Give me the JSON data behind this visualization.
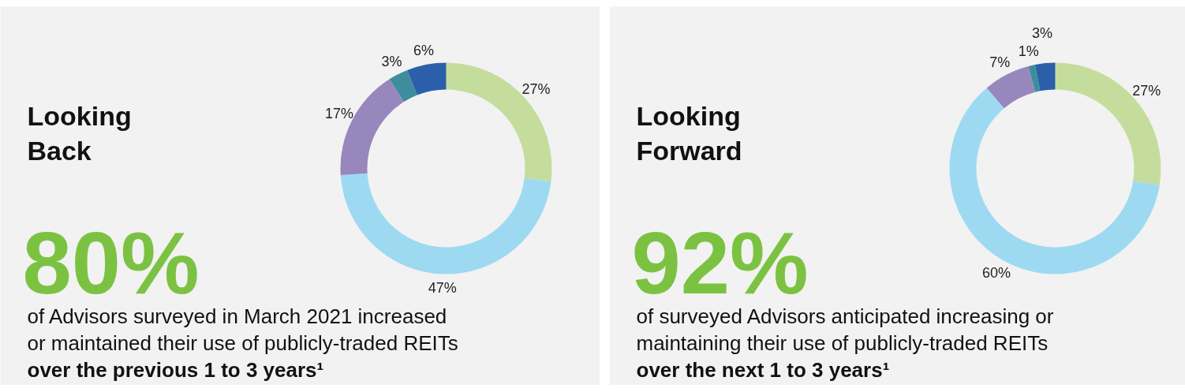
{
  "chart_data": [
    {
      "type": "donut",
      "title": "Looking Back",
      "categories": [
        null,
        null,
        null,
        null,
        null
      ],
      "values": [
        27,
        47,
        17,
        3,
        6
      ],
      "colors": [
        "#c4dd9c",
        "#9ddaf2",
        "#9787bd",
        "#3d8d9d",
        "#2b5fa9"
      ],
      "value_labels": [
        "27%",
        "47%",
        "17%",
        "3%",
        "6%"
      ],
      "annotations": [
        "80%",
        "of Advisors surveyed in March 2021 increased",
        "or maintained their use of publicly-traded REITs",
        "over the previous 1 to 3 years¹"
      ]
    },
    {
      "type": "donut",
      "title": "Looking Forward",
      "categories": [
        null,
        null,
        null,
        null,
        null
      ],
      "values": [
        27,
        60,
        7,
        1,
        3
      ],
      "colors": [
        "#c4dd9c",
        "#9ddaf2",
        "#9787bd",
        "#3d8d9d",
        "#2b5fa9"
      ],
      "value_labels": [
        "27%",
        "60%",
        "7%",
        "1%",
        "3%"
      ],
      "annotations": [
        "92%",
        "of surveyed Advisors anticipated increasing or",
        "maintaining their use of publicly-traded REITs",
        "over the next 1 to 3 years¹"
      ]
    }
  ]
}
